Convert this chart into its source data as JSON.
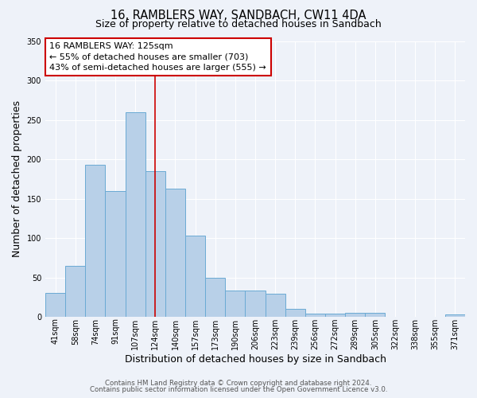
{
  "title": "16, RAMBLERS WAY, SANDBACH, CW11 4DA",
  "subtitle": "Size of property relative to detached houses in Sandbach",
  "xlabel": "Distribution of detached houses by size in Sandbach",
  "ylabel": "Number of detached properties",
  "bar_labels": [
    "41sqm",
    "58sqm",
    "74sqm",
    "91sqm",
    "107sqm",
    "124sqm",
    "140sqm",
    "157sqm",
    "173sqm",
    "190sqm",
    "206sqm",
    "223sqm",
    "239sqm",
    "256sqm",
    "272sqm",
    "289sqm",
    "305sqm",
    "322sqm",
    "338sqm",
    "355sqm",
    "371sqm"
  ],
  "bar_values": [
    30,
    65,
    193,
    160,
    260,
    185,
    163,
    103,
    50,
    33,
    33,
    29,
    10,
    4,
    4,
    5,
    5,
    0,
    0,
    0,
    3
  ],
  "bar_color": "#b8d0e8",
  "bar_edge_color": "#6aaad4",
  "ylim": [
    0,
    350
  ],
  "yticks": [
    0,
    50,
    100,
    150,
    200,
    250,
    300,
    350
  ],
  "vline_x": 5.5,
  "vline_color": "#cc0000",
  "annotation_title": "16 RAMBLERS WAY: 125sqm",
  "annotation_line1": "← 55% of detached houses are smaller (703)",
  "annotation_line2": "43% of semi-detached houses are larger (555) →",
  "annotation_box_color": "#ffffff",
  "annotation_box_edge": "#cc0000",
  "footer_line1": "Contains HM Land Registry data © Crown copyright and database right 2024.",
  "footer_line2": "Contains public sector information licensed under the Open Government Licence v3.0.",
  "bg_color": "#eef2f9",
  "plot_bg_color": "#eef2f9",
  "grid_color": "#ffffff",
  "title_fontsize": 10.5,
  "subtitle_fontsize": 9,
  "axis_label_fontsize": 9,
  "tick_fontsize": 7,
  "annotation_fontsize": 8,
  "footer_fontsize": 6.2
}
